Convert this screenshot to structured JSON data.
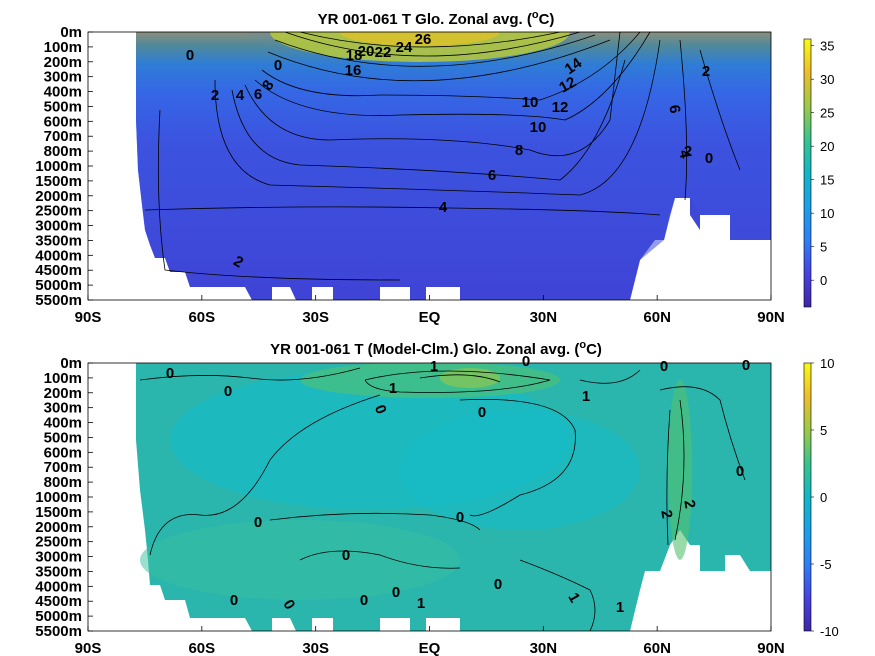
{
  "chart_data": [
    {
      "type": "heatmap",
      "title": "YR 001-061 T Glo. Zonal avg. (°C)",
      "title_parts": [
        "YR 001-061 T Glo. Zonal avg. (",
        "o",
        "C)"
      ],
      "x_ticks": [
        "90S",
        "60S",
        "30S",
        "EQ",
        "30N",
        "60N",
        "90N"
      ],
      "y_ticks": [
        "0m",
        "100m",
        "200m",
        "300m",
        "400m",
        "500m",
        "600m",
        "700m",
        "800m",
        "1000m",
        "1500m",
        "2000m",
        "2500m",
        "3000m",
        "3500m",
        "4000m",
        "4500m",
        "5000m",
        "5500m"
      ],
      "colorbar_ticks": [
        "35",
        "30",
        "25",
        "20",
        "15",
        "10",
        "5",
        "0"
      ],
      "colorbar_range": [
        -4,
        36
      ],
      "colors": [
        "#3e26a8",
        "#4743e0",
        "#2f7ff7",
        "#1ca0e8",
        "#12b7c6",
        "#3ac38e",
        "#9dc94a",
        "#eebd2e",
        "#f9fb15"
      ],
      "contour_labels": [
        "26",
        "24",
        "22",
        "20",
        "18",
        "16",
        "14",
        "12",
        "12",
        "10",
        "10",
        "8",
        "8",
        "6",
        "6",
        "6",
        "4",
        "4",
        "4",
        "2",
        "2",
        "2",
        "2",
        "0",
        "0",
        "0"
      ]
    },
    {
      "type": "heatmap",
      "title": "YR 001-061 T (Model-Clm.) Glo. Zonal avg. (°C)",
      "title_parts": [
        "YR 001-061 T (Model-Clm.) Glo. Zonal avg. (",
        "o",
        "C)"
      ],
      "x_ticks": [
        "90S",
        "60S",
        "30S",
        "EQ",
        "30N",
        "60N",
        "90N"
      ],
      "y_ticks": [
        "0m",
        "100m",
        "200m",
        "300m",
        "400m",
        "500m",
        "600m",
        "700m",
        "800m",
        "1000m",
        "1500m",
        "2000m",
        "2500m",
        "3000m",
        "3500m",
        "4000m",
        "4500m",
        "5000m",
        "5500m"
      ],
      "colorbar_ticks": [
        "10",
        "5",
        "0",
        "-5",
        "-10"
      ],
      "colorbar_range": [
        -10,
        10
      ],
      "colors": [
        "#3e26a8",
        "#4743e0",
        "#2f7ff7",
        "#1ca0e8",
        "#12b7c6",
        "#3ac38e",
        "#9dc94a",
        "#eebd2e",
        "#f9fb15"
      ],
      "contour_labels": [
        "0",
        "0",
        "0",
        "0",
        "0",
        "0",
        "0",
        "0",
        "0",
        "0",
        "0",
        "0",
        "0",
        "0",
        "0",
        "0",
        "1",
        "1",
        "1",
        "1",
        "1",
        "1",
        "2",
        "2"
      ]
    }
  ]
}
